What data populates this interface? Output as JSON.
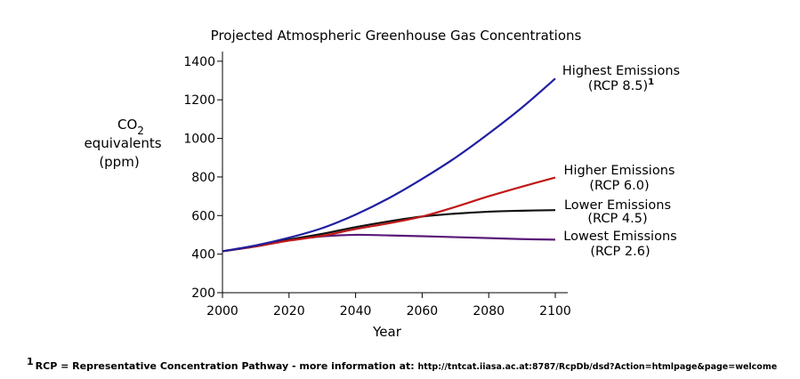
{
  "chart_data": {
    "type": "line",
    "title": "Projected Atmospheric Greenhouse Gas Concentrations",
    "xlabel": "Year",
    "ylabel": {
      "prefix": "CO",
      "subscript": "2",
      "line2": "equivalents",
      "line3": "(ppm)"
    },
    "xlim": [
      2000,
      2100
    ],
    "ylim": [
      200,
      1450
    ],
    "xticks": [
      2000,
      2020,
      2040,
      2060,
      2080,
      2100
    ],
    "yticks": [
      200,
      400,
      600,
      800,
      1000,
      1200,
      1400
    ],
    "grid": false,
    "x": [
      2000,
      2010,
      2020,
      2030,
      2040,
      2050,
      2060,
      2070,
      2080,
      2090,
      2100
    ],
    "series": [
      {
        "key": "rcp85",
        "name": "Highest Emissions",
        "sub": "(RCP 8.5)",
        "footnote_mark": "1",
        "color": "#1f1fa0",
        "values": [
          415,
          445,
          485,
          535,
          605,
          690,
          790,
          900,
          1025,
          1160,
          1310
        ]
      },
      {
        "key": "rcp60",
        "name": "Higher Emissions",
        "sub": "(RCP 6.0)",
        "color": "#c01818",
        "values": [
          415,
          440,
          470,
          495,
          530,
          560,
          595,
          645,
          700,
          750,
          797
        ]
      },
      {
        "key": "rcp45",
        "name": "Lower Emissions",
        "sub": "(RCP 4.5)",
        "color": "#111111",
        "values": [
          415,
          440,
          475,
          505,
          540,
          570,
          595,
          610,
          620,
          625,
          628
        ]
      },
      {
        "key": "rcp26",
        "name": "Lowest Emissions",
        "sub": "(RCP 2.6)",
        "color": "#5a1a78",
        "values": [
          415,
          440,
          472,
          492,
          500,
          497,
          493,
          488,
          483,
          478,
          475
        ]
      }
    ]
  },
  "footnote": {
    "mark": "1",
    "text": "RCP = Representative Concentration Pathway - more information at:",
    "url": "http://tntcat.iiasa.ac.at:8787/RcpDb/dsd?Action=htmlpage&page=welcome"
  }
}
